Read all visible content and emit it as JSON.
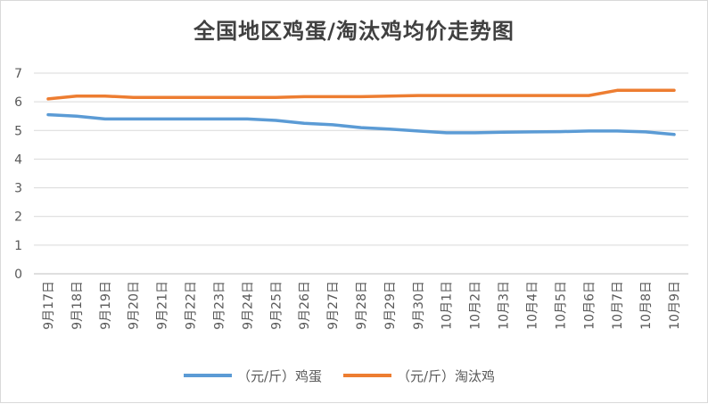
{
  "chart_data": {
    "type": "line",
    "title": "全国地区鸡蛋/淘汰鸡均价走势图",
    "xlabel": "",
    "ylabel": "",
    "ylim": [
      0,
      7
    ],
    "yticks": [
      "0",
      "1",
      "2",
      "3",
      "4",
      "5",
      "6",
      "7"
    ],
    "grid": true,
    "legend_position": "bottom",
    "categories": [
      "9月17日",
      "9月18日",
      "9月19日",
      "9月20日",
      "9月21日",
      "9月22日",
      "9月23日",
      "9月24日",
      "9月25日",
      "9月26日",
      "9月27日",
      "9月28日",
      "9月29日",
      "9月30日",
      "10月1日",
      "10月2日",
      "10月3日",
      "10月4日",
      "10月5日",
      "10月6日",
      "10月7日",
      "10月8日",
      "10月9日"
    ],
    "series": [
      {
        "name": "（元/斤）鸡蛋",
        "color": "#5b9bd5",
        "values": [
          5.55,
          5.5,
          5.4,
          5.4,
          5.4,
          5.4,
          5.4,
          5.4,
          5.35,
          5.25,
          5.2,
          5.1,
          5.05,
          4.98,
          4.92,
          4.92,
          4.94,
          4.95,
          4.96,
          4.98,
          4.98,
          4.95,
          4.86
        ]
      },
      {
        "name": "（元/斤）淘汰鸡",
        "color": "#ed7d31",
        "values": [
          6.1,
          6.2,
          6.2,
          6.15,
          6.15,
          6.15,
          6.15,
          6.15,
          6.15,
          6.18,
          6.18,
          6.18,
          6.2,
          6.22,
          6.22,
          6.22,
          6.22,
          6.22,
          6.22,
          6.22,
          6.4,
          6.4,
          6.4
        ]
      }
    ]
  }
}
